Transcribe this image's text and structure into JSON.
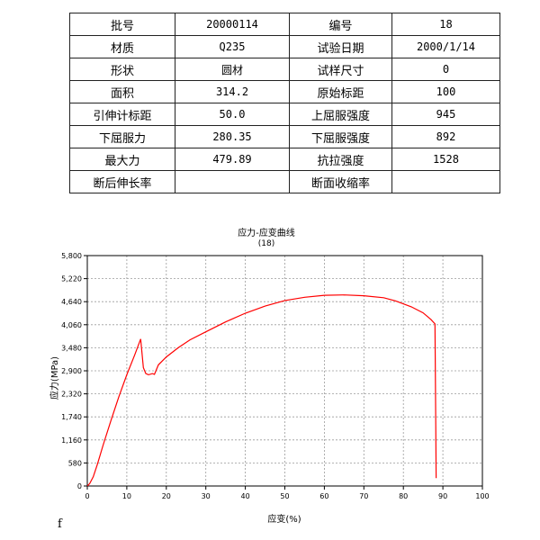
{
  "info_table": {
    "rows": [
      [
        "批号",
        "20000114",
        "编号",
        "18"
      ],
      [
        "材质",
        "Q235",
        "试验日期",
        "2000/1/14"
      ],
      [
        "形状",
        "圆材",
        "试样尺寸",
        "0"
      ],
      [
        "面积",
        "314.2",
        "原始标距",
        "100"
      ],
      [
        "引伸计标距",
        "50.0",
        "上屈服强度",
        "945"
      ],
      [
        "下屈服力",
        "280.35",
        "下屈服强度",
        "892"
      ],
      [
        "最大力",
        "479.89",
        "抗拉强度",
        "1528"
      ],
      [
        "断后伸长率",
        "",
        "断面收缩率",
        ""
      ]
    ]
  },
  "stray_mark": "f",
  "chart_data": {
    "type": "line",
    "title": "应力-应变曲线",
    "subtitle": "(18)",
    "xlabel": "应变(%)",
    "ylabel": "应力(MPa)",
    "xlim": [
      0,
      100
    ],
    "ylim": [
      0,
      5800
    ],
    "x_ticks": [
      0,
      10,
      20,
      30,
      40,
      50,
      60,
      70,
      80,
      90,
      100
    ],
    "y_ticks": [
      0,
      580,
      1160,
      1740,
      2320,
      2900,
      3480,
      4060,
      4640,
      5220,
      5800
    ],
    "y_tick_labels": [
      "0",
      "580",
      "1,160",
      "1,740",
      "2,320",
      "2,900",
      "3,480",
      "4,060",
      "4,640",
      "5,220",
      "5,800"
    ],
    "grid": true,
    "line_color": "#ff0000",
    "series": [
      {
        "x": [
          0,
          0.6,
          1.5,
          2.5,
          4,
          6,
          8,
          10,
          12,
          13.5,
          14.2,
          14.8,
          15.5,
          16.5,
          17,
          18,
          20,
          23,
          26,
          30,
          35,
          40,
          45,
          50,
          55,
          60,
          65,
          70,
          75,
          78,
          82,
          85,
          87,
          88,
          88.2,
          88.3
        ],
        "y": [
          0,
          60,
          230,
          530,
          1030,
          1650,
          2250,
          2800,
          3300,
          3700,
          2980,
          2830,
          2800,
          2830,
          2810,
          3050,
          3250,
          3480,
          3680,
          3880,
          4130,
          4350,
          4530,
          4670,
          4750,
          4800,
          4810,
          4790,
          4740,
          4660,
          4510,
          4360,
          4190,
          4080,
          1500,
          200
        ]
      }
    ]
  }
}
